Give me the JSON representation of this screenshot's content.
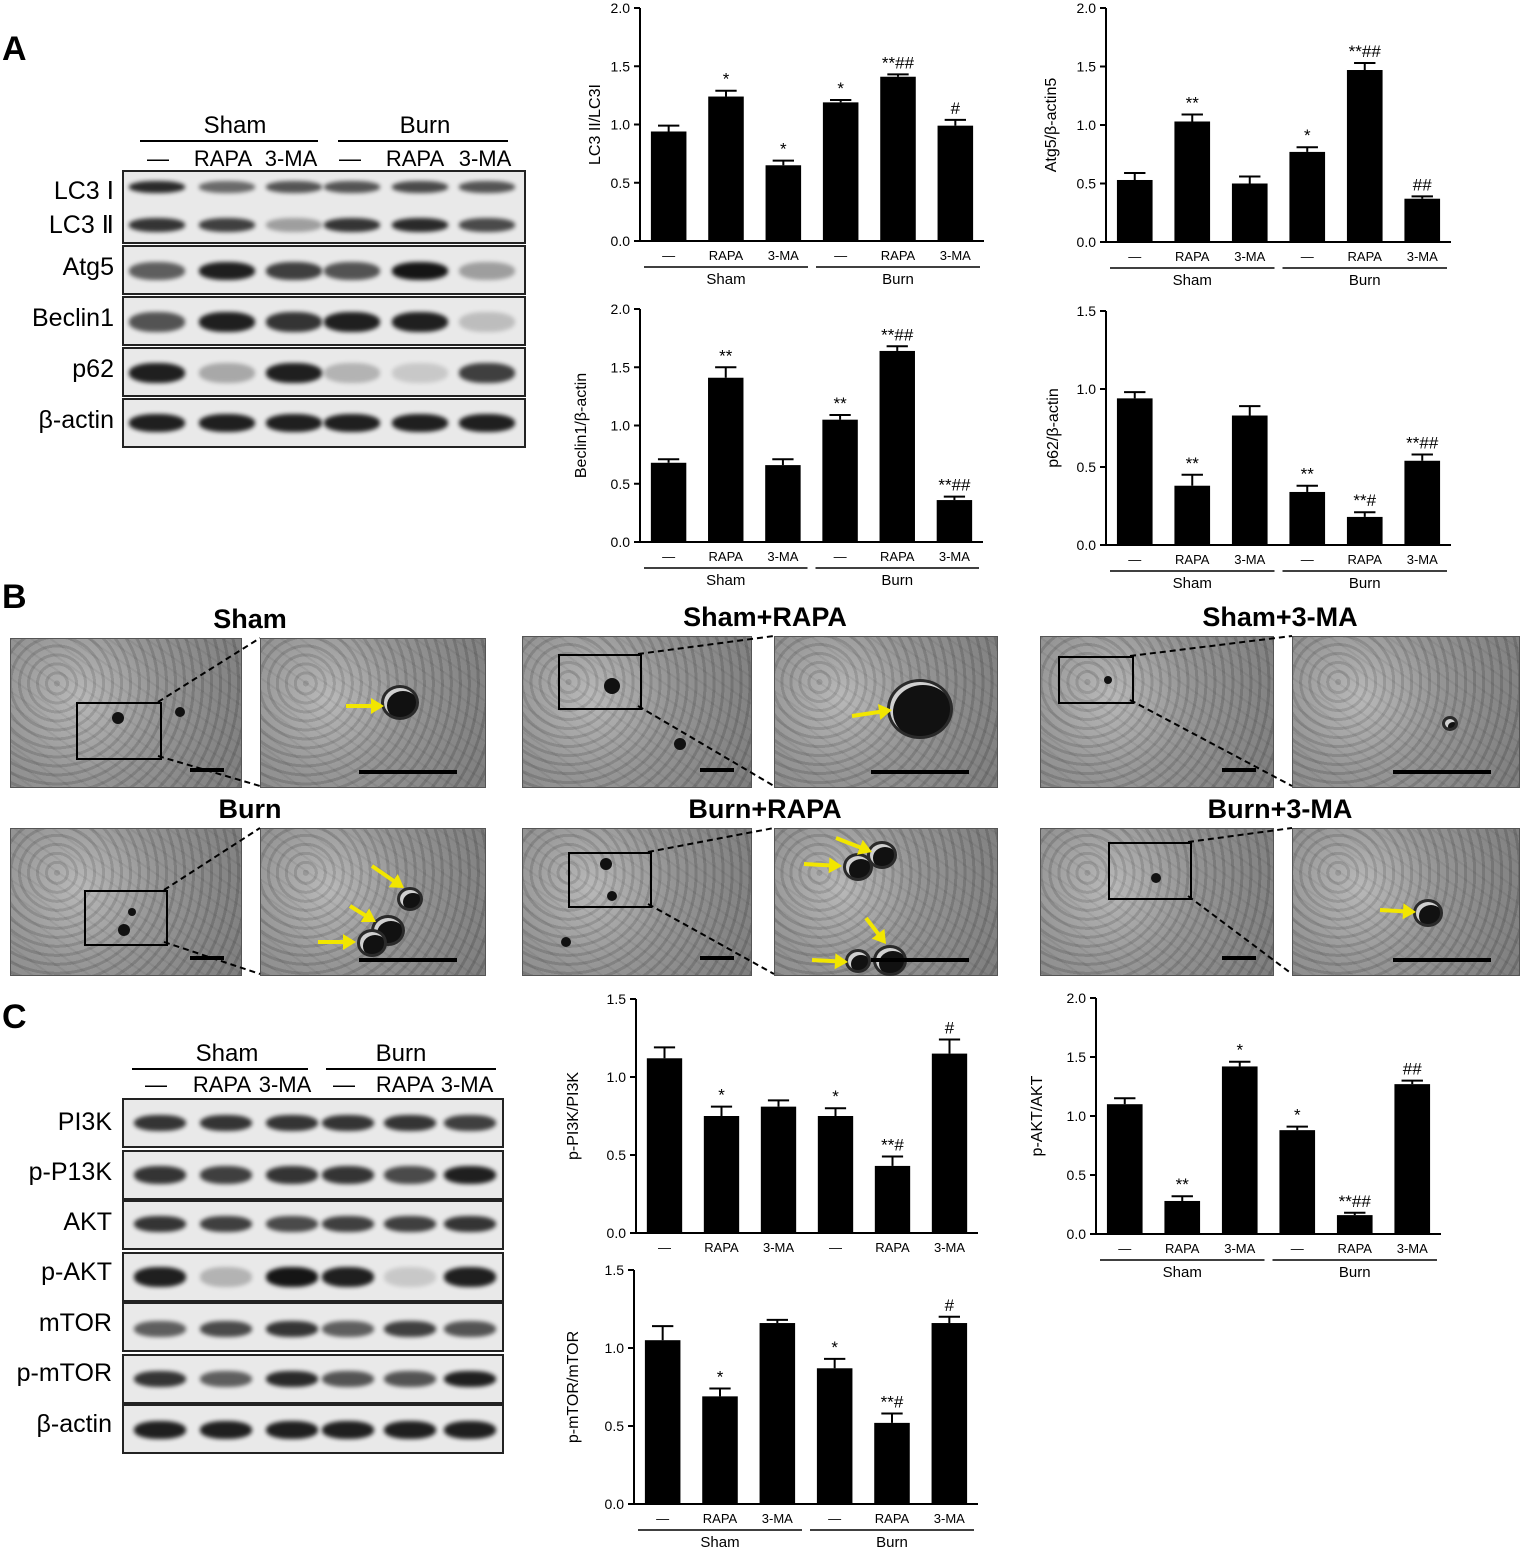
{
  "panels": {
    "a": "A",
    "b": "B",
    "c": "C"
  },
  "blot_a": {
    "groups": [
      "Sham",
      "Burn"
    ],
    "lanes": [
      "—",
      "RAPA",
      "3-MA",
      "—",
      "RAPA",
      "3-MA"
    ],
    "rows": [
      "LC3 Ⅰ",
      "LC3 Ⅱ",
      "Atg5",
      "Beclin1",
      "p62",
      "β-actin"
    ]
  },
  "blot_c": {
    "groups": [
      "Sham",
      "Burn"
    ],
    "lanes": [
      "—",
      "RAPA",
      "3-MA",
      "—",
      "RAPA",
      "3-MA"
    ],
    "rows": [
      "PI3K",
      "p-P13K",
      "AKT",
      "p-AKT",
      "mTOR",
      "p-mTOR",
      "β-actin"
    ]
  },
  "em": {
    "titles": [
      "Sham",
      "Sham+RAPA",
      "Sham+3-MA",
      "Burn",
      "Burn+RAPA",
      "Burn+3-MA"
    ],
    "arrow_color": "#f2e600"
  },
  "chart_data": [
    {
      "type": "bar",
      "ylabel": "LC3 II/LC3I",
      "ylim": [
        0,
        2.0
      ],
      "yticks": [
        "0.0",
        "0.5",
        "1.0",
        "1.5",
        "2.0"
      ],
      "categories": [
        "—",
        "RAPA",
        "3-MA",
        "—",
        "RAPA",
        "3-MA"
      ],
      "groups": [
        "Sham",
        "Burn"
      ],
      "values": [
        0.94,
        1.24,
        0.65,
        1.19,
        1.41,
        0.99
      ],
      "errors": [
        0.05,
        0.05,
        0.04,
        0.02,
        0.02,
        0.05
      ],
      "annotations": [
        "",
        "*",
        "*",
        "*",
        "**##",
        "#"
      ]
    },
    {
      "type": "bar",
      "ylabel": "Atg5/β-actin5",
      "ylim": [
        0,
        2.0
      ],
      "yticks": [
        "0.0",
        "0.5",
        "1.0",
        "1.5",
        "2.0"
      ],
      "categories": [
        "—",
        "RAPA",
        "3-MA",
        "—",
        "RAPA",
        "3-MA"
      ],
      "groups": [
        "Sham",
        "Burn"
      ],
      "values": [
        0.53,
        1.03,
        0.5,
        0.77,
        1.47,
        0.37
      ],
      "errors": [
        0.06,
        0.06,
        0.06,
        0.04,
        0.06,
        0.02
      ],
      "annotations": [
        "",
        "**",
        "",
        "*",
        "**##",
        "##"
      ]
    },
    {
      "type": "bar",
      "ylabel": "Beclin1/β-actin",
      "ylim": [
        0,
        2.0
      ],
      "yticks": [
        "0.0",
        "0.5",
        "1.0",
        "1.5",
        "2.0"
      ],
      "categories": [
        "—",
        "RAPA",
        "3-MA",
        "—",
        "RAPA",
        "3-MA"
      ],
      "groups": [
        "Sham",
        "Burn"
      ],
      "values": [
        0.68,
        1.41,
        0.66,
        1.05,
        1.64,
        0.36
      ],
      "errors": [
        0.03,
        0.09,
        0.05,
        0.04,
        0.04,
        0.03
      ],
      "annotations": [
        "",
        "**",
        "",
        "**",
        "**##",
        "**##"
      ]
    },
    {
      "type": "bar",
      "ylabel": "p62/β-actin",
      "ylim": [
        0,
        1.5
      ],
      "yticks": [
        "0.0",
        "0.5",
        "1.0",
        "1.5"
      ],
      "categories": [
        "—",
        "RAPA",
        "3-MA",
        "—",
        "RAPA",
        "3-MA"
      ],
      "groups": [
        "Sham",
        "Burn"
      ],
      "values": [
        0.94,
        0.38,
        0.83,
        0.34,
        0.18,
        0.54
      ],
      "errors": [
        0.04,
        0.07,
        0.06,
        0.04,
        0.03,
        0.04
      ],
      "annotations": [
        "",
        "**",
        "",
        "**",
        "**#",
        "**##"
      ]
    },
    {
      "type": "bar",
      "ylabel": "p-PI3K/PI3K",
      "ylim": [
        0,
        1.5
      ],
      "yticks": [
        "0.0",
        "0.5",
        "1.0",
        "1.5"
      ],
      "categories": [
        "—",
        "RAPA",
        "3-MA",
        "—",
        "RAPA",
        "3-MA"
      ],
      "groups": [],
      "values": [
        1.12,
        0.75,
        0.81,
        0.75,
        0.43,
        1.15
      ],
      "errors": [
        0.07,
        0.06,
        0.04,
        0.05,
        0.06,
        0.09
      ],
      "annotations": [
        "",
        "*",
        "",
        "*",
        "**#",
        "#"
      ]
    },
    {
      "type": "bar",
      "ylabel": "p-AKT/AKT",
      "ylim": [
        0,
        2.0
      ],
      "yticks": [
        "0.0",
        "0.5",
        "1.0",
        "1.5",
        "2.0"
      ],
      "categories": [
        "—",
        "RAPA",
        "3-MA",
        "—",
        "RAPA",
        "3-MA"
      ],
      "groups": [
        "Sham",
        "Burn"
      ],
      "values": [
        1.1,
        0.28,
        1.42,
        0.88,
        0.16,
        1.27
      ],
      "errors": [
        0.05,
        0.04,
        0.04,
        0.03,
        0.02,
        0.03
      ],
      "annotations": [
        "",
        "**",
        "*",
        "*",
        "**##",
        "##"
      ]
    },
    {
      "type": "bar",
      "ylabel": "p-mTOR/mTOR",
      "ylim": [
        0,
        1.5
      ],
      "yticks": [
        "0.0",
        "0.5",
        "1.0",
        "1.5"
      ],
      "categories": [
        "—",
        "RAPA",
        "3-MA",
        "—",
        "RAPA",
        "3-MA"
      ],
      "groups": [
        "Sham",
        "Burn"
      ],
      "values": [
        1.05,
        0.69,
        1.16,
        0.87,
        0.52,
        1.16
      ],
      "errors": [
        0.09,
        0.05,
        0.02,
        0.06,
        0.06,
        0.04
      ],
      "annotations": [
        "",
        "*",
        "",
        "*",
        "**#",
        "#"
      ]
    }
  ]
}
